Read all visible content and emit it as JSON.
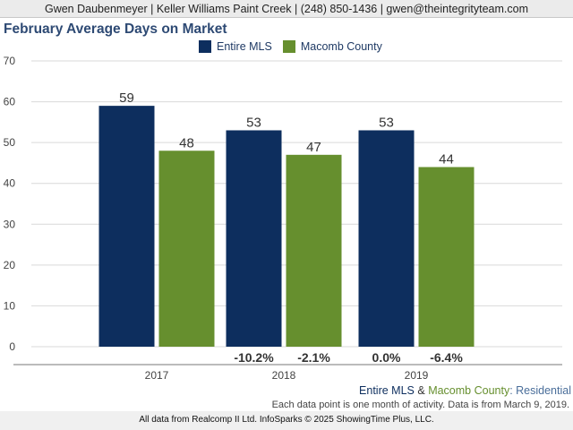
{
  "header": {
    "contact_line": "Gwen Daubenmeyer | Keller Williams Paint Creek | (248) 850-1436 | gwen@theintegrityteam.com"
  },
  "colors": {
    "entire_mls": "#0d2e5e",
    "macomb_county": "#668f2e",
    "negative_label": "#333333",
    "gridline": "#d9d9d9"
  },
  "chart_data": {
    "type": "bar",
    "title": "February Average Days on Market",
    "categories": [
      "2017",
      "2018",
      "2019"
    ],
    "series": [
      {
        "name": "Entire MLS",
        "values": [
          59,
          53,
          53
        ],
        "change_labels": [
          "",
          "-10.2%",
          "0.0%"
        ]
      },
      {
        "name": "Macomb County",
        "values": [
          48,
          47,
          44
        ],
        "change_labels": [
          "",
          "-2.1%",
          "-6.4%"
        ]
      }
    ],
    "y_ticks": [
      0,
      10,
      20,
      30,
      40,
      50,
      60,
      70
    ],
    "ylim": [
      0,
      70
    ],
    "grid": true,
    "legend_position": "top-center",
    "xlabel": "",
    "ylabel": ""
  },
  "footer": {
    "series_entire": "Entire MLS",
    "ampersand": " & ",
    "series_macomb": "Macomb County",
    "property_type": ": Residential",
    "note": "Each data point is one month of activity. Data is from March 9, 2019.",
    "source": "All data from Realcomp II Ltd. InfoSparks © 2025 ShowingTime Plus, LLC."
  }
}
